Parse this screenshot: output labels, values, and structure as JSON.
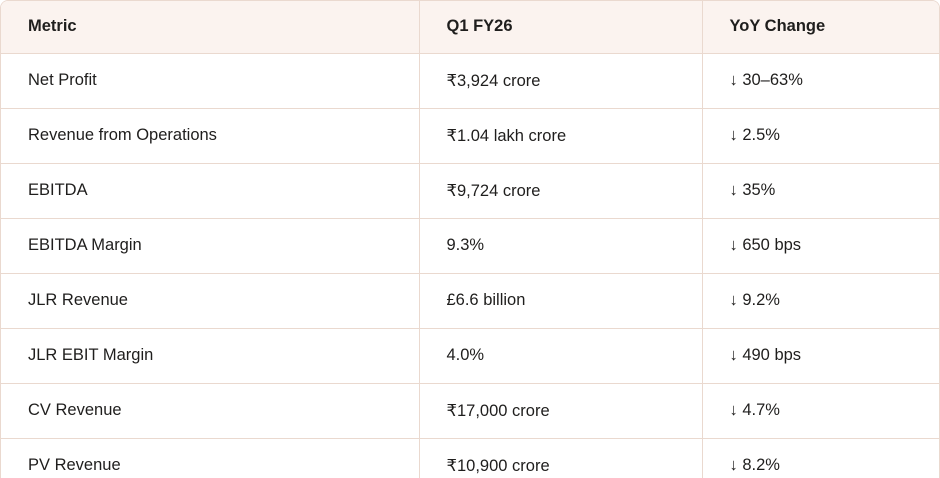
{
  "table": {
    "headers": [
      "Metric",
      "Q1 FY26",
      "YoY Change"
    ],
    "rows": [
      [
        "Net Profit",
        "₹3,924 crore",
        "↓ 30–63%"
      ],
      [
        "Revenue from Operations",
        "₹1.04 lakh crore",
        "↓ 2.5%"
      ],
      [
        "EBITDA",
        "₹9,724 crore",
        "↓ 35%"
      ],
      [
        "EBITDA Margin",
        "9.3%",
        "↓ 650 bps"
      ],
      [
        "JLR Revenue",
        "£6.6 billion",
        "↓ 9.2%"
      ],
      [
        "JLR EBIT Margin",
        "4.0%",
        "↓ 490 bps"
      ],
      [
        "CV Revenue",
        "₹17,000 crore",
        "↓ 4.7%"
      ],
      [
        "PV Revenue",
        "₹10,900 crore",
        "↓ 8.2%"
      ]
    ]
  },
  "colors": {
    "header_bg": "#fbf3ef",
    "border": "#ead9cf",
    "text": "#1f1e1d"
  }
}
